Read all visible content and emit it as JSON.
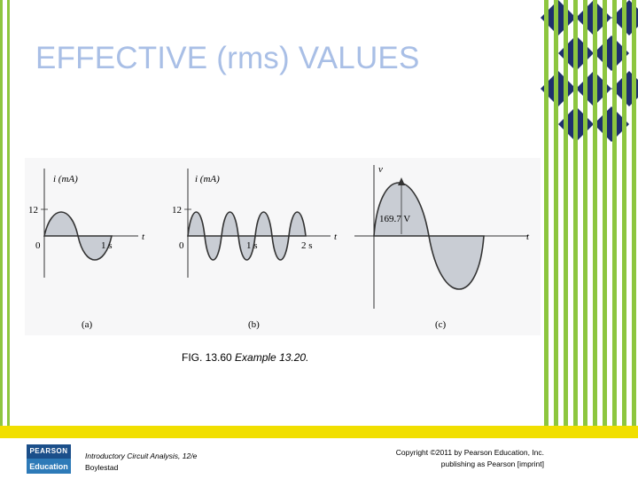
{
  "slide": {
    "title": "EFFECTIVE (rms) VALUES"
  },
  "figure": {
    "panel_a": {
      "ylabel": "i (mA)",
      "amplitude": "12",
      "origin": "0",
      "tick_1": "1 s",
      "xlabel": "t",
      "caption": "(a)"
    },
    "panel_b": {
      "ylabel": "i (mA)",
      "amplitude": "12",
      "origin": "0",
      "tick_1": "1 s",
      "tick_2": "2 s",
      "xlabel": "t",
      "caption": "(b)"
    },
    "panel_c": {
      "ylabel": "v",
      "peak_label": "169.7 V",
      "xlabel": "t",
      "caption": "(c)"
    }
  },
  "caption": {
    "fig_number": "FIG. 13.60",
    "fig_text": "Example 13.20."
  },
  "footer": {
    "logo_top": "PEARSON",
    "logo_bottom": "Education",
    "book_title": "Introductory Circuit Analysis, 12/e",
    "author": "Boylestad",
    "copyright_line1": "Copyright ©2011 by Pearson Education, Inc.",
    "copyright_line2": "publishing as Pearson [imprint]"
  },
  "colors": {
    "accent_green": "#8dc63f",
    "accent_navy": "#1f2f6e",
    "title_color": "#a9bfe6",
    "footer_yellow": "#f1df00",
    "wave_fill": "#c9cdd4"
  }
}
